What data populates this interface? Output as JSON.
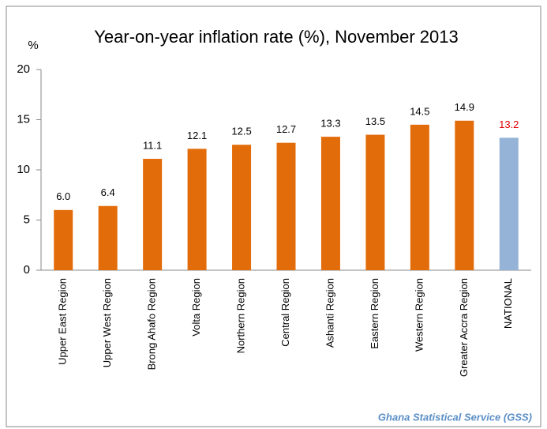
{
  "chart_data": {
    "type": "bar",
    "title": "Year-on-year inflation rate (%), November 2013",
    "y_axis_label": "%",
    "source": "Ghana Statistical Service (GSS)",
    "categories": [
      "Upper East Region",
      "Upper West Region",
      "Brong Ahafo Region",
      "Volta Region",
      "Northern Region",
      "Central Region",
      "Ashanti Region",
      "Eastern Region",
      "Western Region",
      "Greater Accra Region",
      "NATIONAL"
    ],
    "values": [
      6.0,
      6.4,
      11.1,
      12.1,
      12.5,
      12.7,
      13.3,
      13.5,
      14.5,
      14.9,
      13.2
    ],
    "value_labels": [
      "6.0",
      "6.4",
      "11.1",
      "12.1",
      "12.5",
      "12.7",
      "13.3",
      "13.5",
      "14.5",
      "14.9",
      "13.2"
    ],
    "colors": [
      "#e36c0a",
      "#e36c0a",
      "#e36c0a",
      "#e36c0a",
      "#e36c0a",
      "#e36c0a",
      "#e36c0a",
      "#e36c0a",
      "#e36c0a",
      "#e36c0a",
      "#95b3d7"
    ],
    "value_label_colors": [
      "#000000",
      "#000000",
      "#000000",
      "#000000",
      "#000000",
      "#000000",
      "#000000",
      "#000000",
      "#000000",
      "#000000",
      "#e00000"
    ],
    "ylim": [
      0,
      20
    ],
    "yticks": [
      0,
      5,
      10,
      15,
      20
    ],
    "grid": false
  }
}
